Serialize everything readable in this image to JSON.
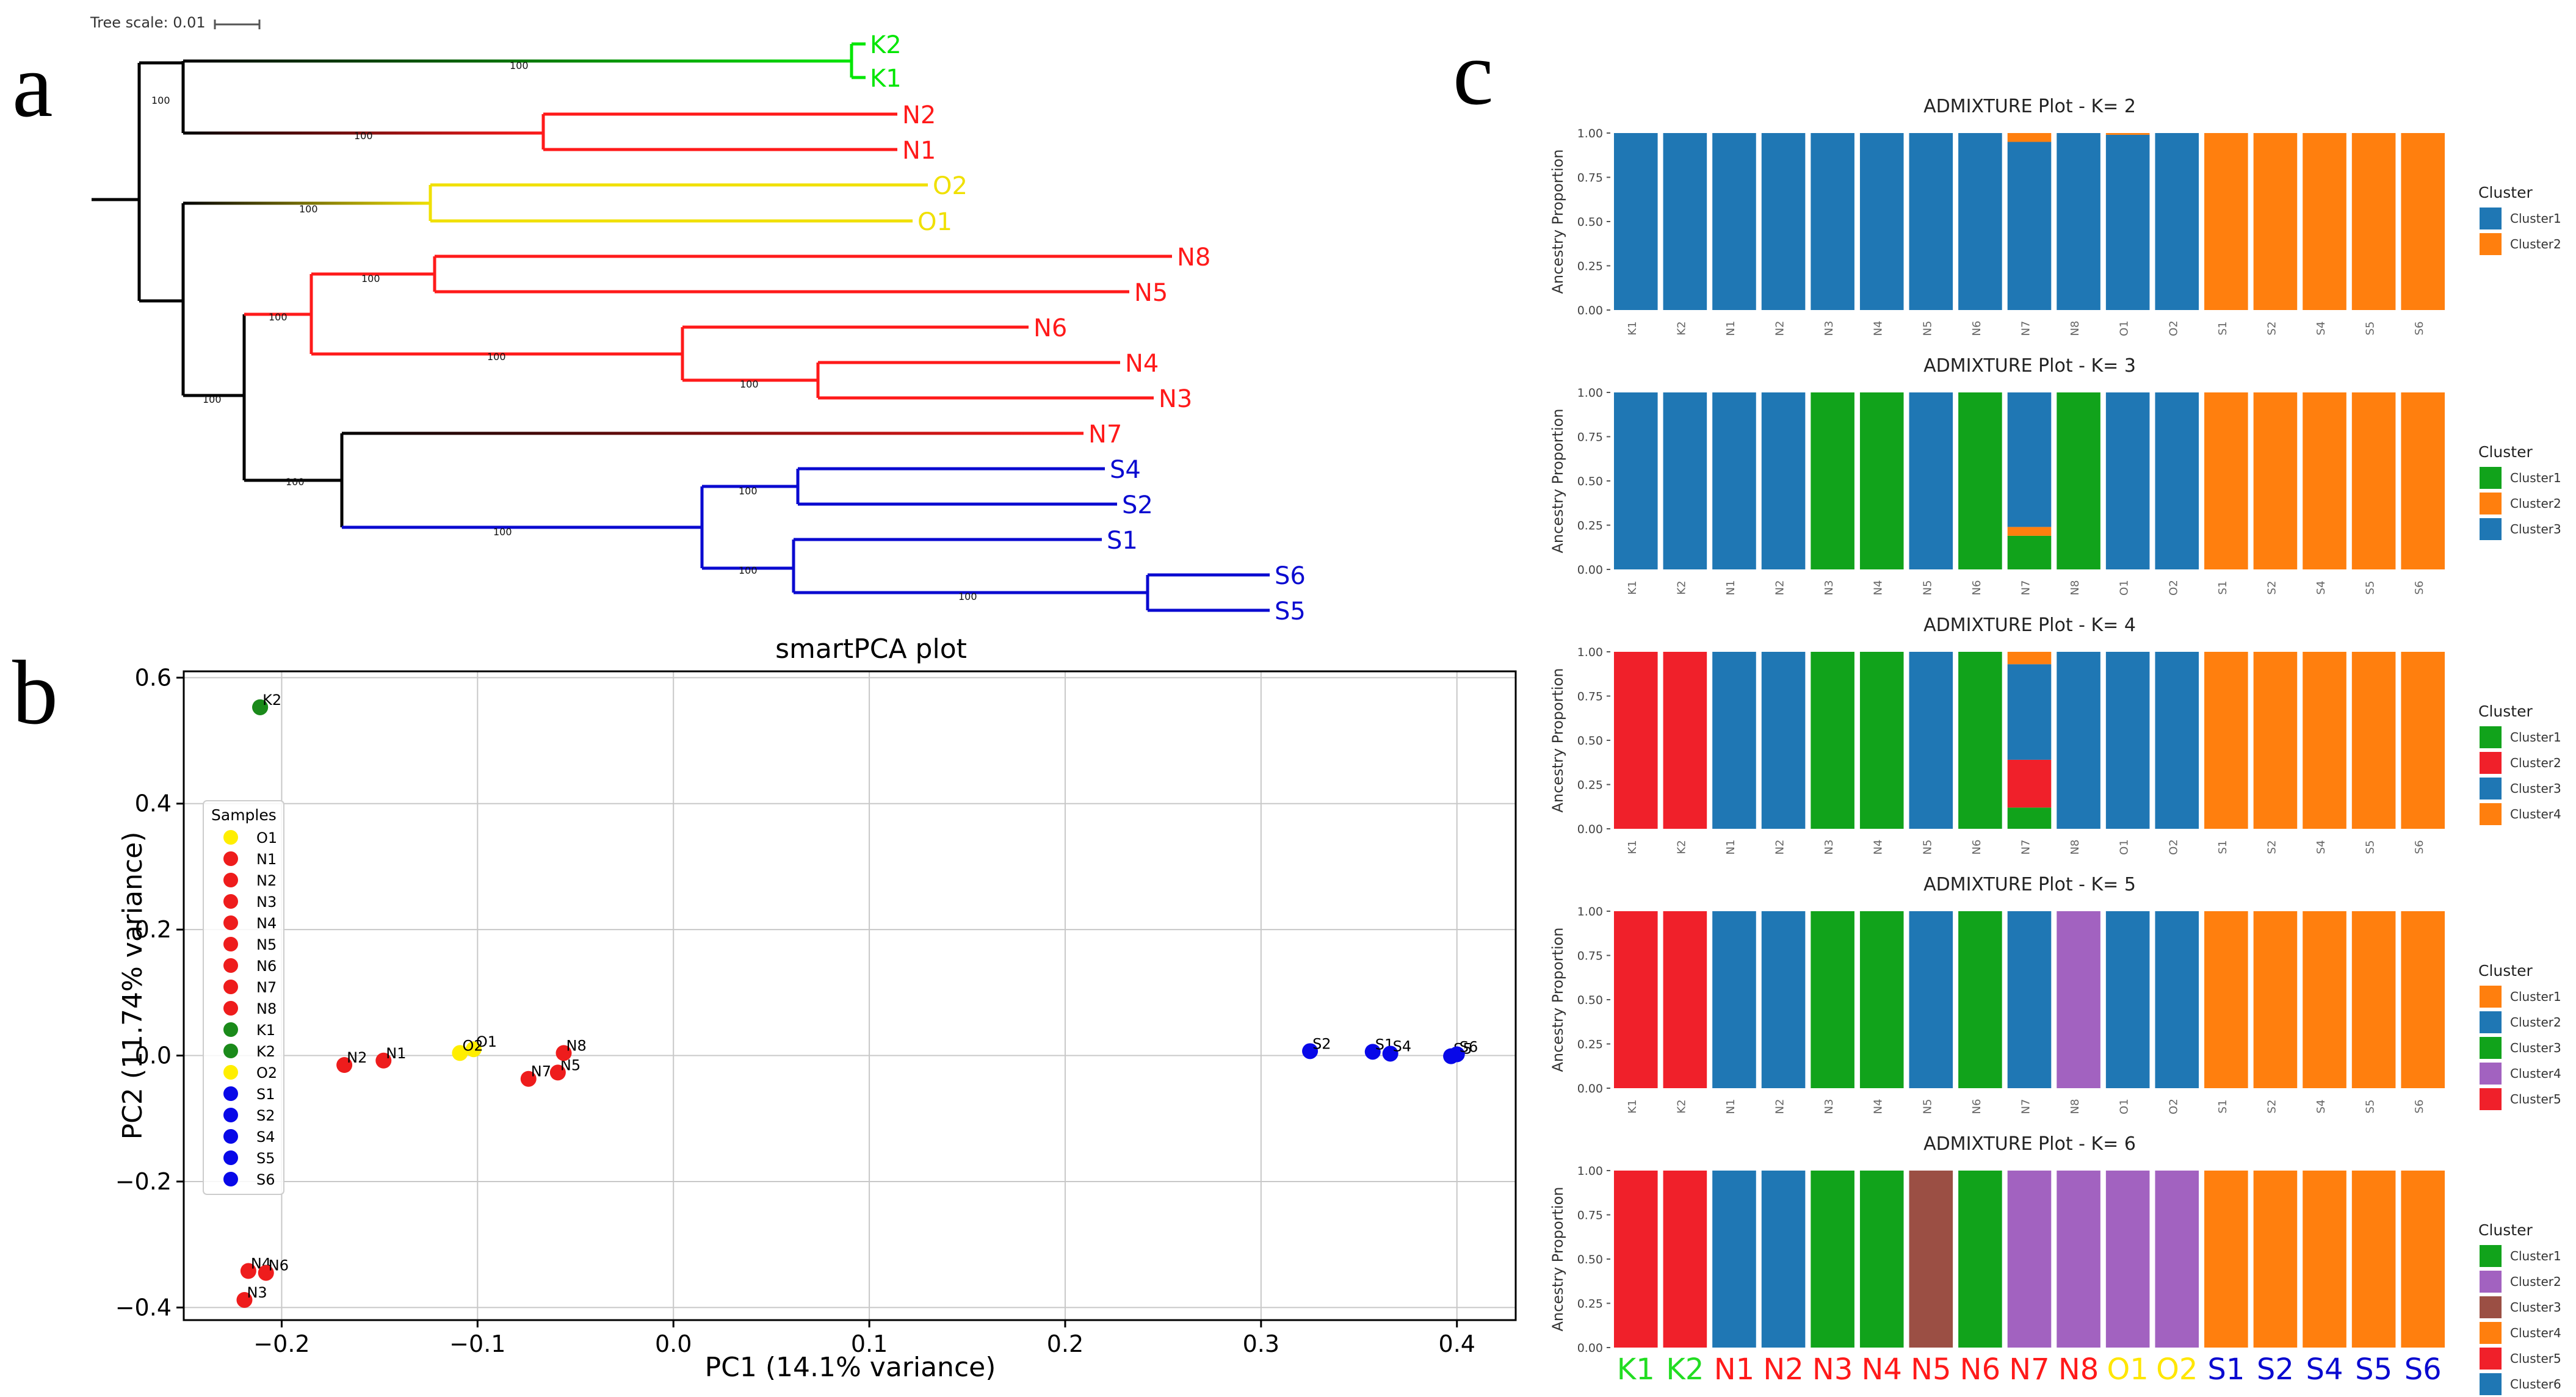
{
  "panel_labels": {
    "a": "a",
    "b": "b",
    "c": "c"
  },
  "colors": {
    "K": "#00e600",
    "N": "#ff1a1a",
    "O": "#f0e000",
    "S": "#0a0ad0",
    "black": "#000000",
    "pca_K": "#1a8a1a",
    "pca_N": "#ee1c1c",
    "pca_O": "#ffee00",
    "pca_S": "#0808e8",
    "adm_blue": "#1f77b4",
    "adm_orange": "#ff7f0e",
    "adm_green": "#11a31b",
    "adm_red": "#f0202a",
    "adm_purple": "#a262c0",
    "adm_brown": "#9b4f44",
    "K_label": "#22dd22",
    "O_label": "#ffe600"
  },
  "chart_data": [
    {
      "type": "tree",
      "title": "Tree scale: 0.01",
      "tree_scale": 0.01,
      "tip_order": [
        "K2",
        "K1",
        "N2",
        "N1",
        "O2",
        "O1",
        "N8",
        "N5",
        "N6",
        "N4",
        "N3",
        "N7",
        "S4",
        "S2",
        "S1",
        "S6",
        "S5"
      ],
      "tip_groups": {
        "K2": "K",
        "K1": "K",
        "N2": "N",
        "N1": "N",
        "O2": "O",
        "O1": "O",
        "N8": "N",
        "N5": "N",
        "N6": "N",
        "N4": "N",
        "N3": "N",
        "N7": "N",
        "S4": "S",
        "S2": "S",
        "S1": "S",
        "S6": "S",
        "S5": "S"
      },
      "bootstrap_labels": [
        "100",
        "100",
        "100",
        "100",
        "100",
        "100",
        "100",
        "100",
        "100",
        "100",
        "100",
        "100",
        "100",
        "100"
      ]
    },
    {
      "type": "scatter",
      "title": "smartPCA plot",
      "xlabel": "PC1 (14.1% variance)",
      "ylabel": "PC2 (11.74% variance)",
      "xlim": [
        -0.25,
        0.43
      ],
      "ylim": [
        -0.42,
        0.61
      ],
      "xticks": [
        -0.2,
        -0.1,
        0.0,
        0.1,
        0.2,
        0.3,
        0.4
      ],
      "xtick_labels": [
        "−0.2",
        "−0.1",
        "0.0",
        "0.1",
        "0.2",
        "0.3",
        "0.4"
      ],
      "yticks": [
        -0.4,
        -0.2,
        0.0,
        0.2,
        0.4,
        0.6
      ],
      "ytick_labels": [
        "−0.4",
        "−0.2",
        "0.0",
        "0.2",
        "0.4",
        "0.6"
      ],
      "grid": true,
      "legend_title": "Samples",
      "legend_position": "upper-left",
      "legend": [
        {
          "name": "O1",
          "group": "O"
        },
        {
          "name": "N1",
          "group": "N"
        },
        {
          "name": "N2",
          "group": "N"
        },
        {
          "name": "N3",
          "group": "N"
        },
        {
          "name": "N4",
          "group": "N"
        },
        {
          "name": "N5",
          "group": "N"
        },
        {
          "name": "N6",
          "group": "N"
        },
        {
          "name": "N7",
          "group": "N"
        },
        {
          "name": "N8",
          "group": "N"
        },
        {
          "name": "K1",
          "group": "K"
        },
        {
          "name": "K2",
          "group": "K"
        },
        {
          "name": "O2",
          "group": "O"
        },
        {
          "name": "S1",
          "group": "S"
        },
        {
          "name": "S2",
          "group": "S"
        },
        {
          "name": "S4",
          "group": "S"
        },
        {
          "name": "S5",
          "group": "S"
        },
        {
          "name": "S6",
          "group": "S"
        }
      ],
      "points": [
        {
          "name": "K1",
          "x": -0.211,
          "y": 0.553,
          "group": "K",
          "show_label": false
        },
        {
          "name": "K2",
          "x": -0.211,
          "y": 0.553,
          "group": "K",
          "show_label": true
        },
        {
          "name": "N1",
          "x": -0.148,
          "y": -0.008,
          "group": "N",
          "show_label": true
        },
        {
          "name": "N2",
          "x": -0.168,
          "y": -0.015,
          "group": "N",
          "show_label": true
        },
        {
          "name": "N3",
          "x": -0.219,
          "y": -0.388,
          "group": "N",
          "show_label": true
        },
        {
          "name": "N4",
          "x": -0.217,
          "y": -0.342,
          "group": "N",
          "show_label": true
        },
        {
          "name": "N5",
          "x": -0.059,
          "y": -0.027,
          "group": "N",
          "show_label": true
        },
        {
          "name": "N6",
          "x": -0.208,
          "y": -0.345,
          "group": "N",
          "show_label": true
        },
        {
          "name": "N7",
          "x": -0.074,
          "y": -0.037,
          "group": "N",
          "show_label": true
        },
        {
          "name": "N8",
          "x": -0.056,
          "y": 0.004,
          "group": "N",
          "show_label": true
        },
        {
          "name": "O1",
          "x": -0.102,
          "y": 0.01,
          "group": "O",
          "show_label": true
        },
        {
          "name": "O2",
          "x": -0.109,
          "y": 0.004,
          "group": "O",
          "show_label": true
        },
        {
          "name": "S1",
          "x": 0.357,
          "y": 0.006,
          "group": "S",
          "show_label": true
        },
        {
          "name": "S2",
          "x": 0.325,
          "y": 0.007,
          "group": "S",
          "show_label": true
        },
        {
          "name": "S4",
          "x": 0.366,
          "y": 0.003,
          "group": "S",
          "show_label": true
        },
        {
          "name": "S5",
          "x": 0.397,
          "y": -0.001,
          "group": "S",
          "show_label": true
        },
        {
          "name": "S6",
          "x": 0.4,
          "y": 0.002,
          "group": "S",
          "show_label": true
        }
      ]
    },
    {
      "type": "stacked-bar",
      "title": "ADMIXTURE Plot - K= 2",
      "ylabel": "Ancestry Proportion",
      "ylim": [
        0,
        1
      ],
      "yticks": [
        "0.00",
        "0.25",
        "0.50",
        "0.75",
        "1.00"
      ],
      "categories": [
        "K1",
        "K2",
        "N1",
        "N2",
        "N3",
        "N4",
        "N5",
        "N6",
        "N7",
        "N8",
        "O1",
        "O2",
        "S1",
        "S2",
        "S4",
        "S5",
        "S6"
      ],
      "legend_title": "Cluster",
      "legend_position": "right",
      "series": [
        {
          "name": "Cluster1",
          "color": "#1f77b4",
          "values": [
            1,
            1,
            1,
            1,
            1,
            1,
            1,
            1,
            0.95,
            1,
            0.99,
            1,
            0,
            0,
            0,
            0,
            0
          ]
        },
        {
          "name": "Cluster2",
          "color": "#ff7f0e",
          "values": [
            0,
            0,
            0,
            0,
            0,
            0,
            0,
            0,
            0.05,
            0,
            0.01,
            0,
            1,
            1,
            1,
            1,
            1
          ]
        }
      ]
    },
    {
      "type": "stacked-bar",
      "title": "ADMIXTURE Plot - K= 3",
      "ylabel": "Ancestry Proportion",
      "ylim": [
        0,
        1
      ],
      "yticks": [
        "0.00",
        "0.25",
        "0.50",
        "0.75",
        "1.00"
      ],
      "categories": [
        "K1",
        "K2",
        "N1",
        "N2",
        "N3",
        "N4",
        "N5",
        "N6",
        "N7",
        "N8",
        "O1",
        "O2",
        "S1",
        "S2",
        "S4",
        "S5",
        "S6"
      ],
      "legend_title": "Cluster",
      "legend_position": "right",
      "series": [
        {
          "name": "Cluster1",
          "color": "#11a31b",
          "values": [
            0,
            0,
            0,
            0,
            1,
            1,
            0,
            1,
            0.19,
            1,
            0,
            0,
            0,
            0,
            0,
            0,
            0
          ]
        },
        {
          "name": "Cluster2",
          "color": "#ff7f0e",
          "values": [
            0,
            0,
            0,
            0,
            0,
            0,
            0,
            0,
            0.05,
            0,
            0,
            0,
            1,
            1,
            1,
            1,
            1
          ]
        },
        {
          "name": "Cluster3",
          "color": "#1f77b4",
          "values": [
            1,
            1,
            1,
            1,
            0,
            0,
            1,
            0,
            0.76,
            0,
            1,
            1,
            0,
            0,
            0,
            0,
            0
          ]
        }
      ]
    },
    {
      "type": "stacked-bar",
      "title": "ADMIXTURE Plot - K= 4",
      "ylabel": "Ancestry Proportion",
      "ylim": [
        0,
        1
      ],
      "yticks": [
        "0.00",
        "0.25",
        "0.50",
        "0.75",
        "1.00"
      ],
      "categories": [
        "K1",
        "K2",
        "N1",
        "N2",
        "N3",
        "N4",
        "N5",
        "N6",
        "N7",
        "N8",
        "O1",
        "O2",
        "S1",
        "S2",
        "S4",
        "S5",
        "S6"
      ],
      "legend_title": "Cluster",
      "legend_position": "right",
      "series": [
        {
          "name": "Cluster1",
          "color": "#11a31b",
          "values": [
            0,
            0,
            0,
            0,
            1,
            1,
            0,
            1,
            0.12,
            0,
            0,
            0,
            0,
            0,
            0,
            0,
            0
          ]
        },
        {
          "name": "Cluster2",
          "color": "#f0202a",
          "values": [
            1,
            1,
            0,
            0,
            0,
            0,
            0,
            0,
            0.27,
            0,
            0,
            0,
            0,
            0,
            0,
            0,
            0
          ]
        },
        {
          "name": "Cluster3",
          "color": "#1f77b4",
          "values": [
            0,
            0,
            1,
            1,
            0,
            0,
            1,
            0,
            0.54,
            1,
            1,
            1,
            0,
            0,
            0,
            0,
            0
          ]
        },
        {
          "name": "Cluster4",
          "color": "#ff7f0e",
          "values": [
            0,
            0,
            0,
            0,
            0,
            0,
            0,
            0,
            0.07,
            0,
            0,
            0,
            1,
            1,
            1,
            1,
            1
          ]
        }
      ]
    },
    {
      "type": "stacked-bar",
      "title": "ADMIXTURE Plot - K= 5",
      "ylabel": "Ancestry Proportion",
      "ylim": [
        0,
        1
      ],
      "yticks": [
        "0.00",
        "0.25",
        "0.50",
        "0.75",
        "1.00"
      ],
      "categories": [
        "K1",
        "K2",
        "N1",
        "N2",
        "N3",
        "N4",
        "N5",
        "N6",
        "N7",
        "N8",
        "O1",
        "O2",
        "S1",
        "S2",
        "S4",
        "S5",
        "S6"
      ],
      "legend_title": "Cluster",
      "legend_position": "right",
      "series": [
        {
          "name": "Cluster1",
          "color": "#ff7f0e",
          "values": [
            0,
            0,
            0,
            0,
            0,
            0,
            0,
            0,
            0,
            0,
            0,
            0,
            1,
            1,
            1,
            1,
            1
          ]
        },
        {
          "name": "Cluster2",
          "color": "#1f77b4",
          "values": [
            0,
            0,
            1,
            1,
            0,
            0,
            1,
            0,
            1,
            0,
            1,
            1,
            0,
            0,
            0,
            0,
            0
          ]
        },
        {
          "name": "Cluster3",
          "color": "#11a31b",
          "values": [
            0,
            0,
            0,
            0,
            1,
            1,
            0,
            1,
            0,
            0,
            0,
            0,
            0,
            0,
            0,
            0,
            0
          ]
        },
        {
          "name": "Cluster4",
          "color": "#a262c0",
          "values": [
            0,
            0,
            0,
            0,
            0,
            0,
            0,
            0,
            0,
            1,
            0,
            0,
            0,
            0,
            0,
            0,
            0
          ]
        },
        {
          "name": "Cluster5",
          "color": "#f0202a",
          "values": [
            1,
            1,
            0,
            0,
            0,
            0,
            0,
            0,
            0,
            0,
            0,
            0,
            0,
            0,
            0,
            0,
            0
          ]
        }
      ]
    },
    {
      "type": "stacked-bar",
      "title": "ADMIXTURE Plot - K= 6",
      "ylabel": "Ancestry Proportion",
      "ylim": [
        0,
        1
      ],
      "yticks": [
        "0.00",
        "0.25",
        "0.50",
        "0.75",
        "1.00"
      ],
      "categories": [
        "K1",
        "K2",
        "N1",
        "N2",
        "N3",
        "N4",
        "N5",
        "N6",
        "N7",
        "N8",
        "O1",
        "O2",
        "S1",
        "S2",
        "S4",
        "S5",
        "S6"
      ],
      "category_label_groups": [
        "K",
        "K",
        "N",
        "N",
        "N",
        "N",
        "N",
        "N",
        "N",
        "N",
        "O",
        "O",
        "S",
        "S",
        "S",
        "S",
        "S"
      ],
      "legend_title": "Cluster",
      "legend_position": "right",
      "series": [
        {
          "name": "Cluster1",
          "color": "#11a31b",
          "values": [
            0,
            0,
            0,
            0,
            1,
            1,
            0,
            1,
            0,
            0,
            0,
            0,
            0,
            0,
            0,
            0,
            0
          ]
        },
        {
          "name": "Cluster2",
          "color": "#a262c0",
          "values": [
            0,
            0,
            0,
            0,
            0,
            0,
            0,
            0,
            1,
            1,
            1,
            1,
            0,
            0,
            0,
            0,
            0
          ]
        },
        {
          "name": "Cluster3",
          "color": "#9b4f44",
          "values": [
            0,
            0,
            0,
            0,
            0,
            0,
            1,
            0,
            0,
            0,
            0,
            0,
            0,
            0,
            0,
            0,
            0
          ]
        },
        {
          "name": "Cluster4",
          "color": "#ff7f0e",
          "values": [
            0,
            0,
            0,
            0,
            0,
            0,
            0,
            0,
            0,
            0,
            0,
            0,
            1,
            1,
            1,
            1,
            1
          ]
        },
        {
          "name": "Cluster5",
          "color": "#f0202a",
          "values": [
            1,
            1,
            0,
            0,
            0,
            0,
            0,
            0,
            0,
            0,
            0,
            0,
            0,
            0,
            0,
            0,
            0
          ]
        },
        {
          "name": "Cluster6",
          "color": "#1f77b4",
          "values": [
            0,
            0,
            1,
            1,
            0,
            0,
            0,
            0,
            0,
            0,
            0,
            0,
            0,
            0,
            0,
            0,
            0
          ]
        }
      ]
    }
  ]
}
